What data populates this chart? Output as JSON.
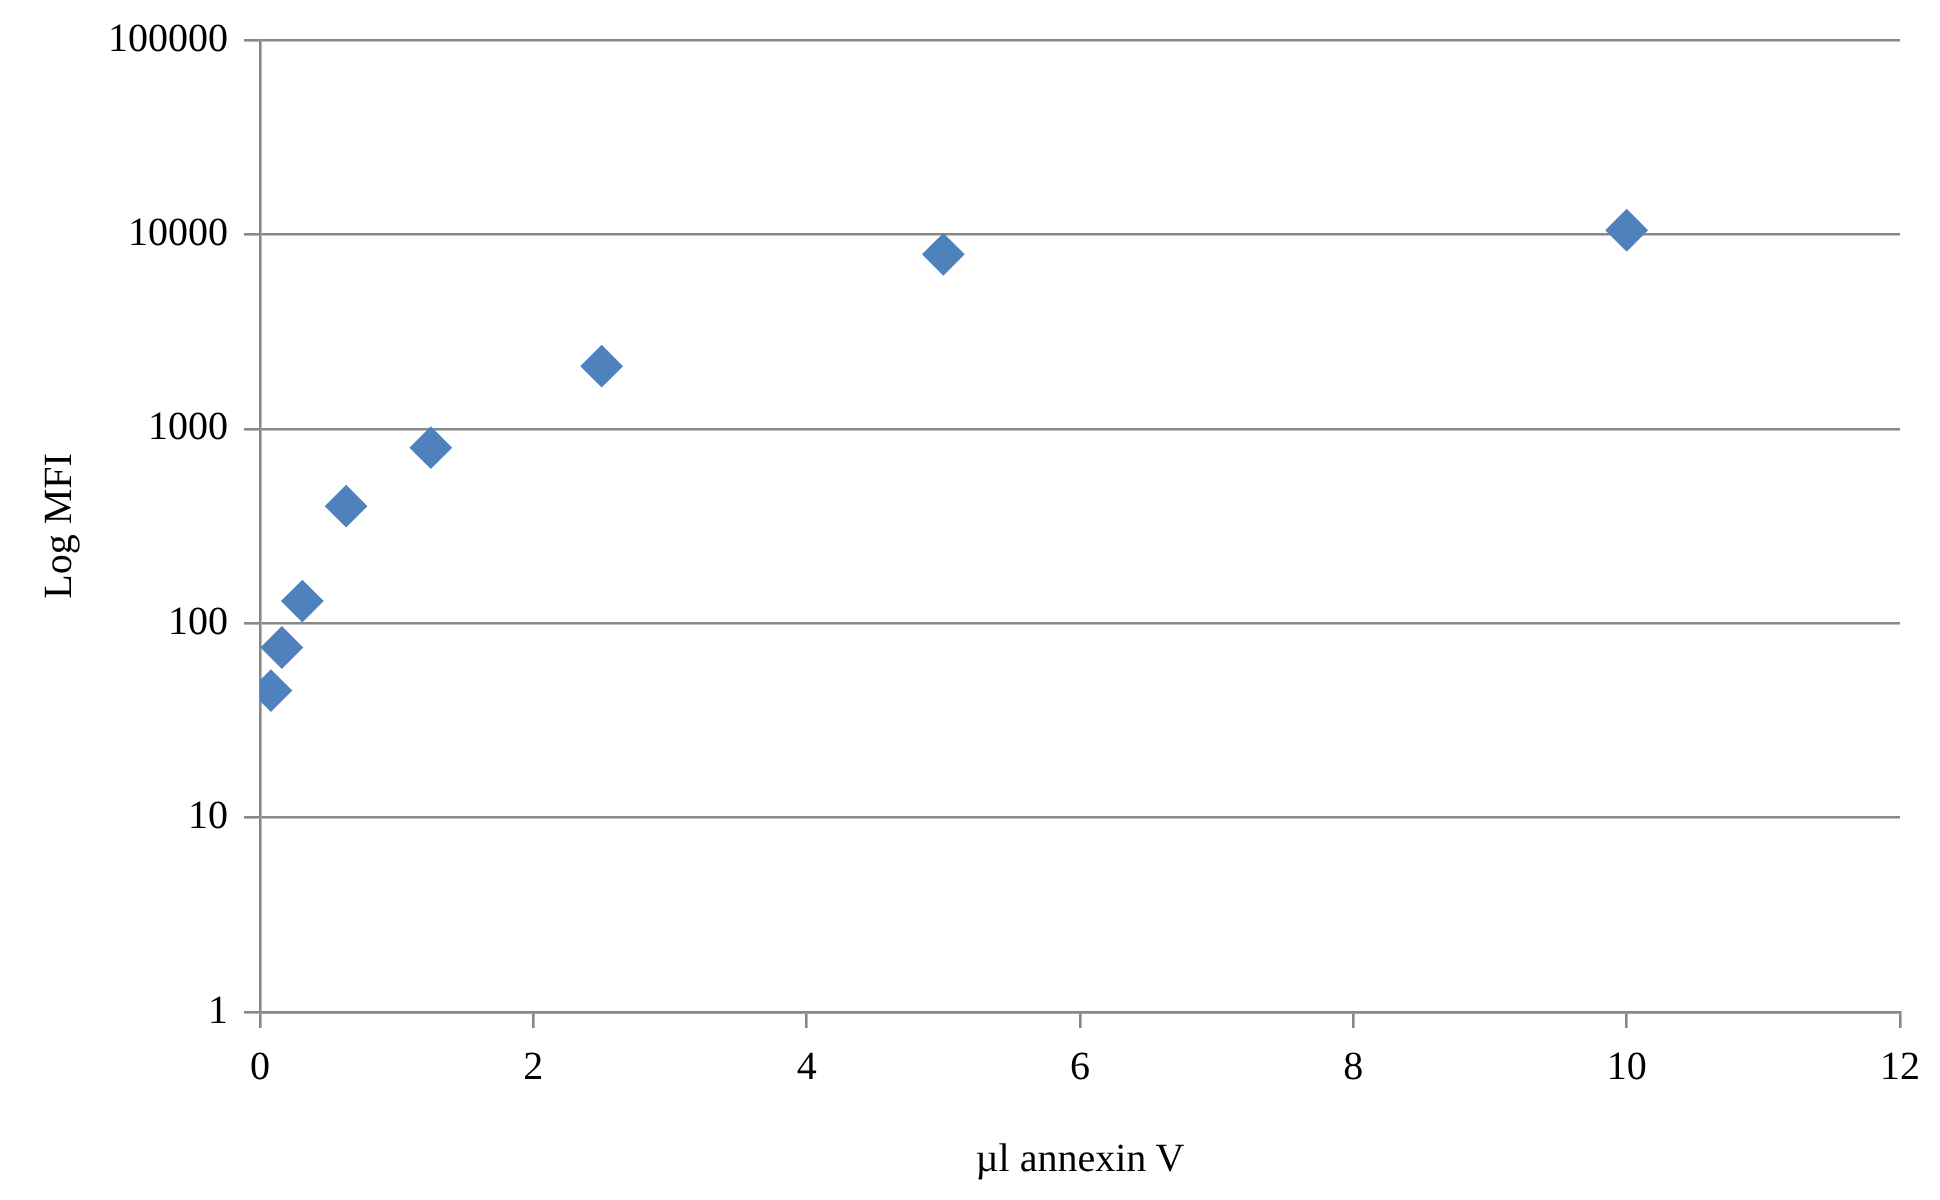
{
  "chart_data": {
    "type": "scatter",
    "xlabel": "µl annexin V",
    "ylabel": "Log MFI",
    "x": [
      0.08,
      0.16,
      0.31,
      0.63,
      1.25,
      2.5,
      5,
      10
    ],
    "series": [
      {
        "color": "#4f81bd",
        "values": [
          45,
          75,
          130,
          400,
          800,
          2100,
          7900,
          10500
        ]
      }
    ],
    "xlim": [
      0,
      12
    ],
    "xticks": [
      0,
      2,
      4,
      6,
      8,
      10,
      12
    ],
    "ylim": [
      1,
      100000
    ],
    "yticks": [
      1,
      10,
      100,
      1000,
      10000,
      100000
    ],
    "log": "y",
    "grid": "y",
    "marker": "diamond"
  }
}
